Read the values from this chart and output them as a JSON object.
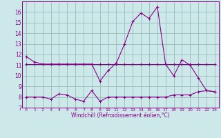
{
  "xlabel": "Windchill (Refroidissement éolien,°C)",
  "xlim": [
    -0.5,
    23.5
  ],
  "ylim": [
    7,
    17
  ],
  "yticks": [
    7,
    8,
    9,
    10,
    11,
    12,
    13,
    14,
    15,
    16
  ],
  "xticks": [
    0,
    1,
    2,
    3,
    4,
    5,
    6,
    7,
    8,
    9,
    10,
    11,
    12,
    13,
    14,
    15,
    16,
    17,
    18,
    19,
    20,
    21,
    22,
    23
  ],
  "bg_color": "#cce8e8",
  "line_color": "#880088",
  "grid_color": "#99bbbb",
  "series1_x": [
    0,
    1,
    2,
    3,
    4,
    5,
    6,
    7,
    8,
    9,
    10,
    11,
    12,
    13,
    14,
    15,
    16,
    17,
    18,
    19,
    20,
    21,
    22,
    23
  ],
  "series1_y": [
    11.8,
    11.3,
    11.1,
    11.1,
    11.1,
    11.1,
    11.1,
    11.1,
    11.1,
    9.5,
    10.5,
    11.2,
    13.0,
    15.1,
    15.9,
    15.4,
    16.5,
    11.1,
    10.0,
    11.5,
    11.0,
    9.8,
    8.6,
    8.5
  ],
  "series2_x": [
    0,
    1,
    2,
    3,
    4,
    5,
    6,
    7,
    8,
    9,
    10,
    11,
    12,
    13,
    14,
    15,
    16,
    17,
    18,
    19,
    20,
    21,
    22,
    23
  ],
  "series2_y": [
    11.1,
    11.1,
    11.1,
    11.1,
    11.1,
    11.1,
    11.1,
    11.1,
    11.1,
    11.1,
    11.1,
    11.1,
    11.1,
    11.1,
    11.1,
    11.1,
    11.1,
    11.1,
    11.1,
    11.1,
    11.1,
    11.1,
    11.1,
    11.1
  ],
  "series3_x": [
    0,
    1,
    2,
    3,
    4,
    5,
    6,
    7,
    8,
    9,
    10,
    11,
    12,
    13,
    14,
    15,
    16,
    17,
    18,
    19,
    20,
    21,
    22,
    23
  ],
  "series3_y": [
    8.0,
    8.0,
    8.0,
    7.8,
    8.3,
    8.2,
    7.8,
    7.6,
    8.6,
    7.6,
    8.0,
    8.0,
    8.0,
    8.0,
    8.0,
    8.0,
    8.0,
    8.0,
    8.2,
    8.2,
    8.2,
    8.5,
    8.6,
    8.5
  ]
}
